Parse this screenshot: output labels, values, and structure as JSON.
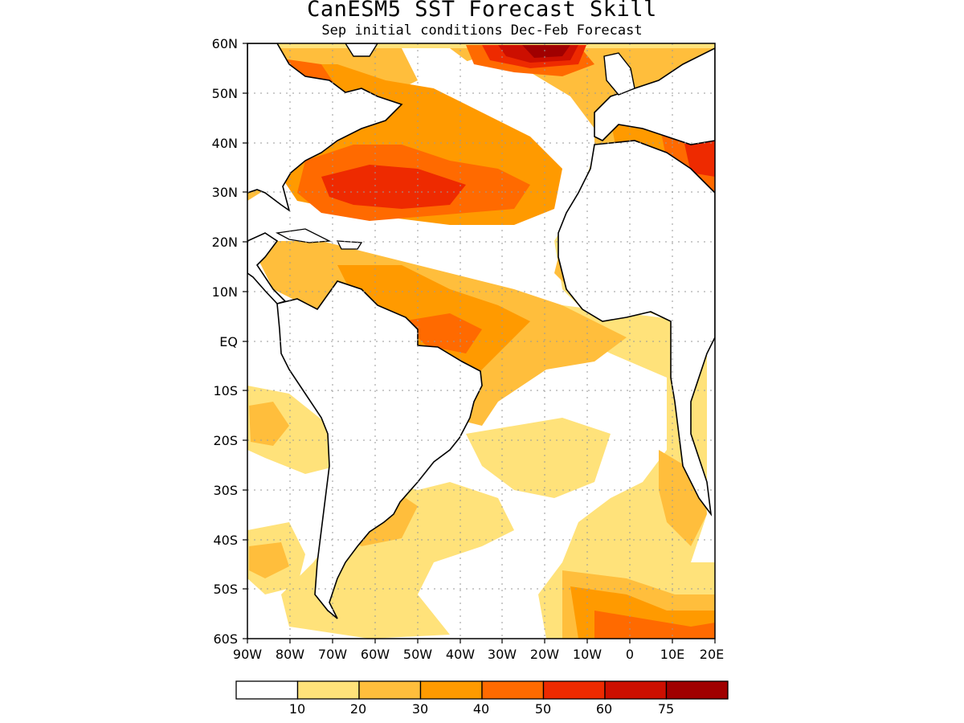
{
  "title": "CanESM5 SST Forecast Skill",
  "subtitle": "Sep initial conditions  Dec-Feb Forecast",
  "lat_labels": [
    "60N",
    "50N",
    "40N",
    "30N",
    "20N",
    "10N",
    "EQ",
    "10S",
    "20S",
    "30S",
    "40S",
    "50S",
    "60S"
  ],
  "lon_labels": [
    "90W",
    "80W",
    "70W",
    "60W",
    "50W",
    "40W",
    "30W",
    "20W",
    "10W",
    "0",
    "10E",
    "20E"
  ],
  "colorbar": {
    "labels": [
      "10",
      "20",
      "30",
      "40",
      "50",
      "60",
      "75"
    ],
    "colors": [
      "#ffffff",
      "#ffe27a",
      "#ffbe3c",
      "#ff9a00",
      "#ff6a00",
      "#ee2a00",
      "#cc0f00",
      "#a00000"
    ]
  }
}
